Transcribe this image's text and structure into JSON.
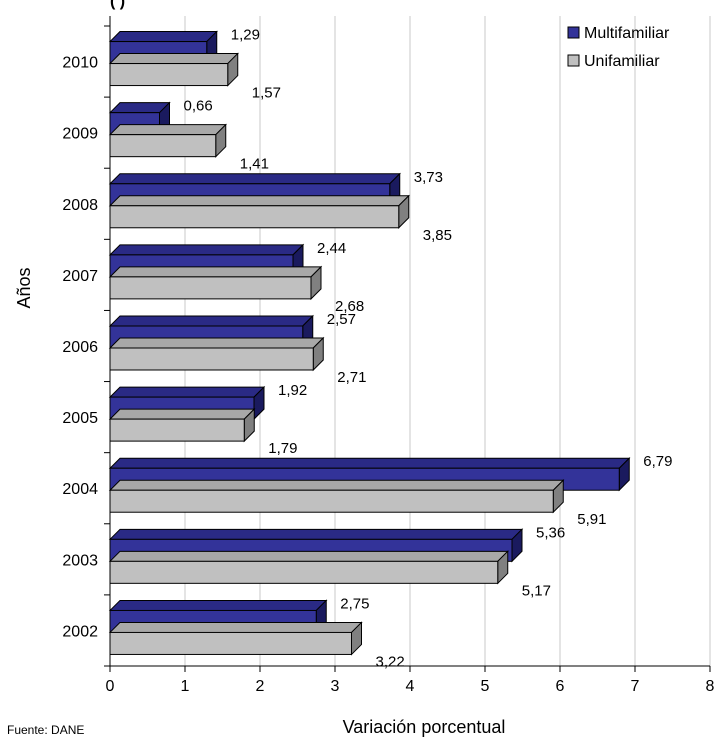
{
  "header_fragment": "(                )",
  "source": "Fuente: DANE",
  "chart_data": {
    "type": "bar",
    "orientation": "horizontal",
    "style": "3d",
    "title": "",
    "xlabel": "Variación porcentual",
    "ylabel": "Años",
    "xlim": [
      0,
      8
    ],
    "x_ticks": [
      "0",
      "1",
      "2",
      "3",
      "4",
      "5",
      "6",
      "7",
      "8"
    ],
    "grid": true,
    "legend_position": "top-right",
    "categories": [
      "2010",
      "2009",
      "2008",
      "2007",
      "2006",
      "2005",
      "2004",
      "2003",
      "2002"
    ],
    "series": [
      {
        "name": "Multifamiliar",
        "color": "#333399",
        "values": [
          1.29,
          0.66,
          3.73,
          2.44,
          2.57,
          1.92,
          6.79,
          5.36,
          2.75
        ],
        "labels": [
          "1,29",
          "0,66",
          "3,73",
          "2,44",
          "2,57",
          "1,92",
          "6,79",
          "5,36",
          "2,75"
        ]
      },
      {
        "name": "Unifamiliar",
        "color": "#c0c0c0",
        "values": [
          1.57,
          1.41,
          3.85,
          2.68,
          2.71,
          1.79,
          5.91,
          5.17,
          3.22
        ],
        "labels": [
          "1,57",
          "1,41",
          "3,85",
          "2,68",
          "2,71",
          "1,79",
          "5,91",
          "5,17",
          "3,22"
        ]
      }
    ]
  }
}
